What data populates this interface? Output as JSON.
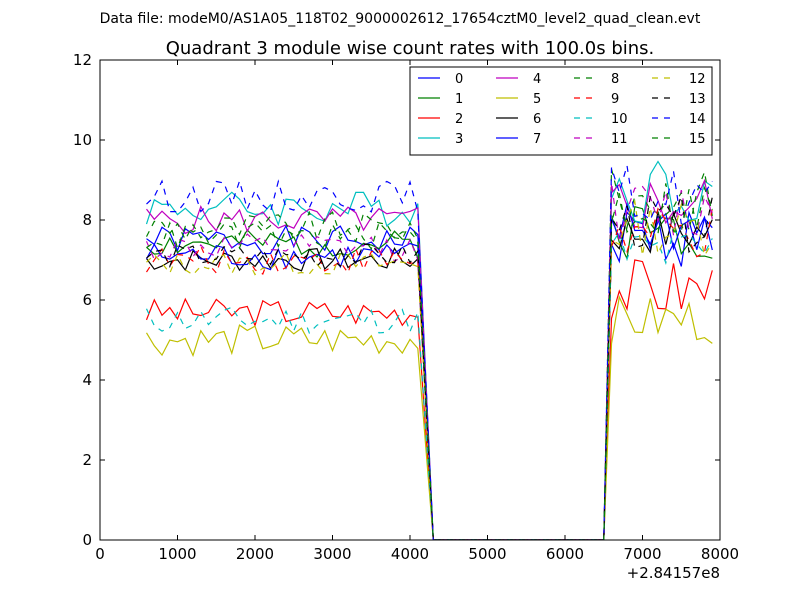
{
  "chart_data": {
    "type": "line",
    "suptitle": "Data file: modeM0/AS1A05_118T02_9000002612_17654cztM0_level2_quad_clean.evt",
    "title": "Quadrant 3 module wise count rates with 100.0s bins.",
    "xlabel": "",
    "ylabel": "",
    "x_offset_label": "+2.84157e8",
    "xlim": [
      0,
      8000
    ],
    "ylim": [
      0,
      12
    ],
    "xticks": [
      0,
      1000,
      2000,
      3000,
      4000,
      5000,
      6000,
      7000,
      8000
    ],
    "yticks": [
      0,
      2,
      4,
      6,
      8,
      10,
      12
    ],
    "grid": false,
    "legend_position": "top-right",
    "segments": [
      {
        "x_start": 600,
        "x_end": 4100,
        "step": 100
      },
      {
        "x_start": 6600,
        "x_end": 7900,
        "step": 100
      }
    ],
    "gap": {
      "drop_end": 4300,
      "rise_start": 6500,
      "value": 0
    },
    "series": [
      {
        "name": "0",
        "color": "#0000ff",
        "style": "solid",
        "level_a": 7.5,
        "amp_a": 0.35,
        "level_b": 7.6,
        "amp_b": 0.8,
        "seed": 1
      },
      {
        "name": "1",
        "color": "#008000",
        "style": "solid",
        "level_a": 7.4,
        "amp_a": 0.35,
        "level_b": 7.8,
        "amp_b": 0.8,
        "seed": 2
      },
      {
        "name": "2",
        "color": "#ff0000",
        "style": "solid",
        "level_a": 5.7,
        "amp_a": 0.35,
        "level_b": 6.3,
        "amp_b": 0.8,
        "seed": 3
      },
      {
        "name": "3",
        "color": "#00bfbf",
        "style": "solid",
        "level_a": 8.3,
        "amp_a": 0.45,
        "level_b": 8.8,
        "amp_b": 0.9,
        "seed": 4
      },
      {
        "name": "4",
        "color": "#bf00bf",
        "style": "solid",
        "level_a": 8.0,
        "amp_a": 0.35,
        "level_b": 8.4,
        "amp_b": 0.8,
        "seed": 5
      },
      {
        "name": "5",
        "color": "#bfbf00",
        "style": "solid",
        "level_a": 5.0,
        "amp_a": 0.4,
        "level_b": 5.5,
        "amp_b": 0.6,
        "seed": 6
      },
      {
        "name": "6",
        "color": "#000000",
        "style": "solid",
        "level_a": 7.0,
        "amp_a": 0.3,
        "level_b": 7.7,
        "amp_b": 0.6,
        "seed": 7
      },
      {
        "name": "7",
        "color": "#0000ff",
        "style": "solid",
        "level_a": 7.1,
        "amp_a": 0.35,
        "level_b": 7.8,
        "amp_b": 0.7,
        "seed": 8
      },
      {
        "name": "8",
        "color": "#008000",
        "style": "dashed",
        "level_a": 7.8,
        "amp_a": 0.4,
        "level_b": 8.5,
        "amp_b": 0.8,
        "seed": 9
      },
      {
        "name": "9",
        "color": "#ff0000",
        "style": "dashed",
        "level_a": 7.0,
        "amp_a": 0.35,
        "level_b": 7.6,
        "amp_b": 0.7,
        "seed": 10
      },
      {
        "name": "10",
        "color": "#00bfbf",
        "style": "dashed",
        "level_a": 5.5,
        "amp_a": 0.35,
        "level_b": 7.2,
        "amp_b": 0.7,
        "seed": 11
      },
      {
        "name": "11",
        "color": "#bf00bf",
        "style": "dashed",
        "level_a": 7.3,
        "amp_a": 0.35,
        "level_b": 8.2,
        "amp_b": 0.8,
        "seed": 12
      },
      {
        "name": "12",
        "color": "#bfbf00",
        "style": "dashed",
        "level_a": 6.9,
        "amp_a": 0.3,
        "level_b": 7.8,
        "amp_b": 0.7,
        "seed": 13
      },
      {
        "name": "13",
        "color": "#000000",
        "style": "dashed",
        "level_a": 7.1,
        "amp_a": 0.3,
        "level_b": 7.9,
        "amp_b": 0.7,
        "seed": 14
      },
      {
        "name": "14",
        "color": "#0000ff",
        "style": "dashed",
        "level_a": 8.6,
        "amp_a": 0.4,
        "level_b": 8.6,
        "amp_b": 0.8,
        "seed": 15
      },
      {
        "name": "15",
        "color": "#008000",
        "style": "dashed",
        "level_a": 7.6,
        "amp_a": 0.35,
        "level_b": 8.3,
        "amp_b": 0.8,
        "seed": 16
      }
    ]
  }
}
